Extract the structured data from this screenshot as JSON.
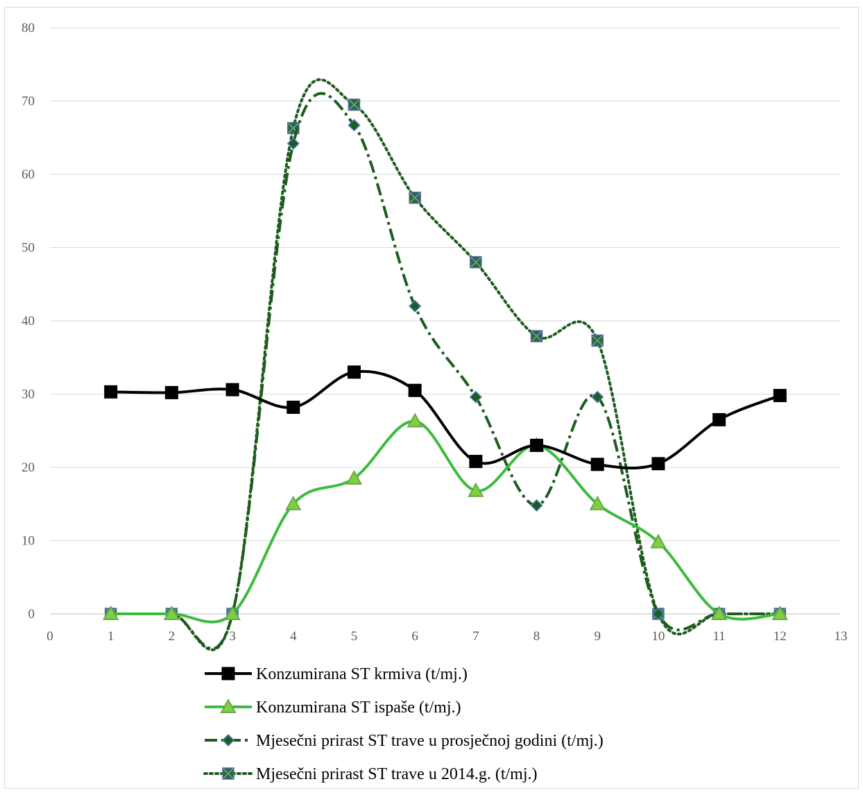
{
  "chart_data": {
    "type": "line",
    "title": "",
    "xlabel": "",
    "ylabel": "",
    "xlim": [
      0,
      13
    ],
    "ylim": [
      0,
      80
    ],
    "x_ticks": [
      0,
      1,
      2,
      3,
      4,
      5,
      6,
      7,
      8,
      9,
      10,
      11,
      12,
      13
    ],
    "y_ticks": [
      0,
      10,
      20,
      30,
      40,
      50,
      60,
      70,
      80
    ],
    "grid": "horizontal",
    "legend_position": "bottom",
    "smooth": true,
    "series": [
      {
        "name": "Konzumirana ST krmiva (t/mj.)",
        "color": "#000000",
        "line_style": "solid",
        "marker": "square",
        "x": [
          1,
          2,
          3,
          4,
          5,
          6,
          7,
          8,
          9,
          10,
          11,
          12
        ],
        "y": [
          30.3,
          30.2,
          30.6,
          28.2,
          33.0,
          30.5,
          20.8,
          23.0,
          20.4,
          20.5,
          26.5,
          29.8
        ]
      },
      {
        "name": "Konzumirana ST ispaše (t/mj.)",
        "color": "#3dbb3d",
        "line_style": "solid",
        "marker": "triangle",
        "x": [
          1,
          2,
          3,
          4,
          5,
          6,
          7,
          8,
          9,
          10,
          11,
          12
        ],
        "y": [
          0,
          0,
          0,
          15.0,
          18.5,
          26.3,
          16.8,
          23.0,
          15.0,
          9.8,
          0,
          0
        ]
      },
      {
        "name": "Mjesečni prirast ST trave u prosječnoj godini (t/mj.)",
        "color": "#1e5c1e",
        "line_style": "dashdot",
        "marker": "diamond",
        "x": [
          1,
          2,
          3,
          4,
          5,
          6,
          7,
          8,
          9,
          10,
          11,
          12
        ],
        "y": [
          0,
          0,
          0,
          64.2,
          66.7,
          42.0,
          29.6,
          14.8,
          29.6,
          0,
          0,
          0
        ]
      },
      {
        "name": "Mjesečni prirast ST trave u 2014.g. (t/mj.)",
        "color": "#1e5c1e",
        "line_style": "dotted",
        "marker": "square-x",
        "x": [
          1,
          2,
          3,
          4,
          5,
          6,
          7,
          8,
          9,
          10,
          11,
          12
        ],
        "y": [
          0,
          0,
          0,
          66.3,
          69.5,
          56.8,
          48.0,
          37.9,
          37.3,
          0,
          0,
          0
        ]
      }
    ]
  }
}
